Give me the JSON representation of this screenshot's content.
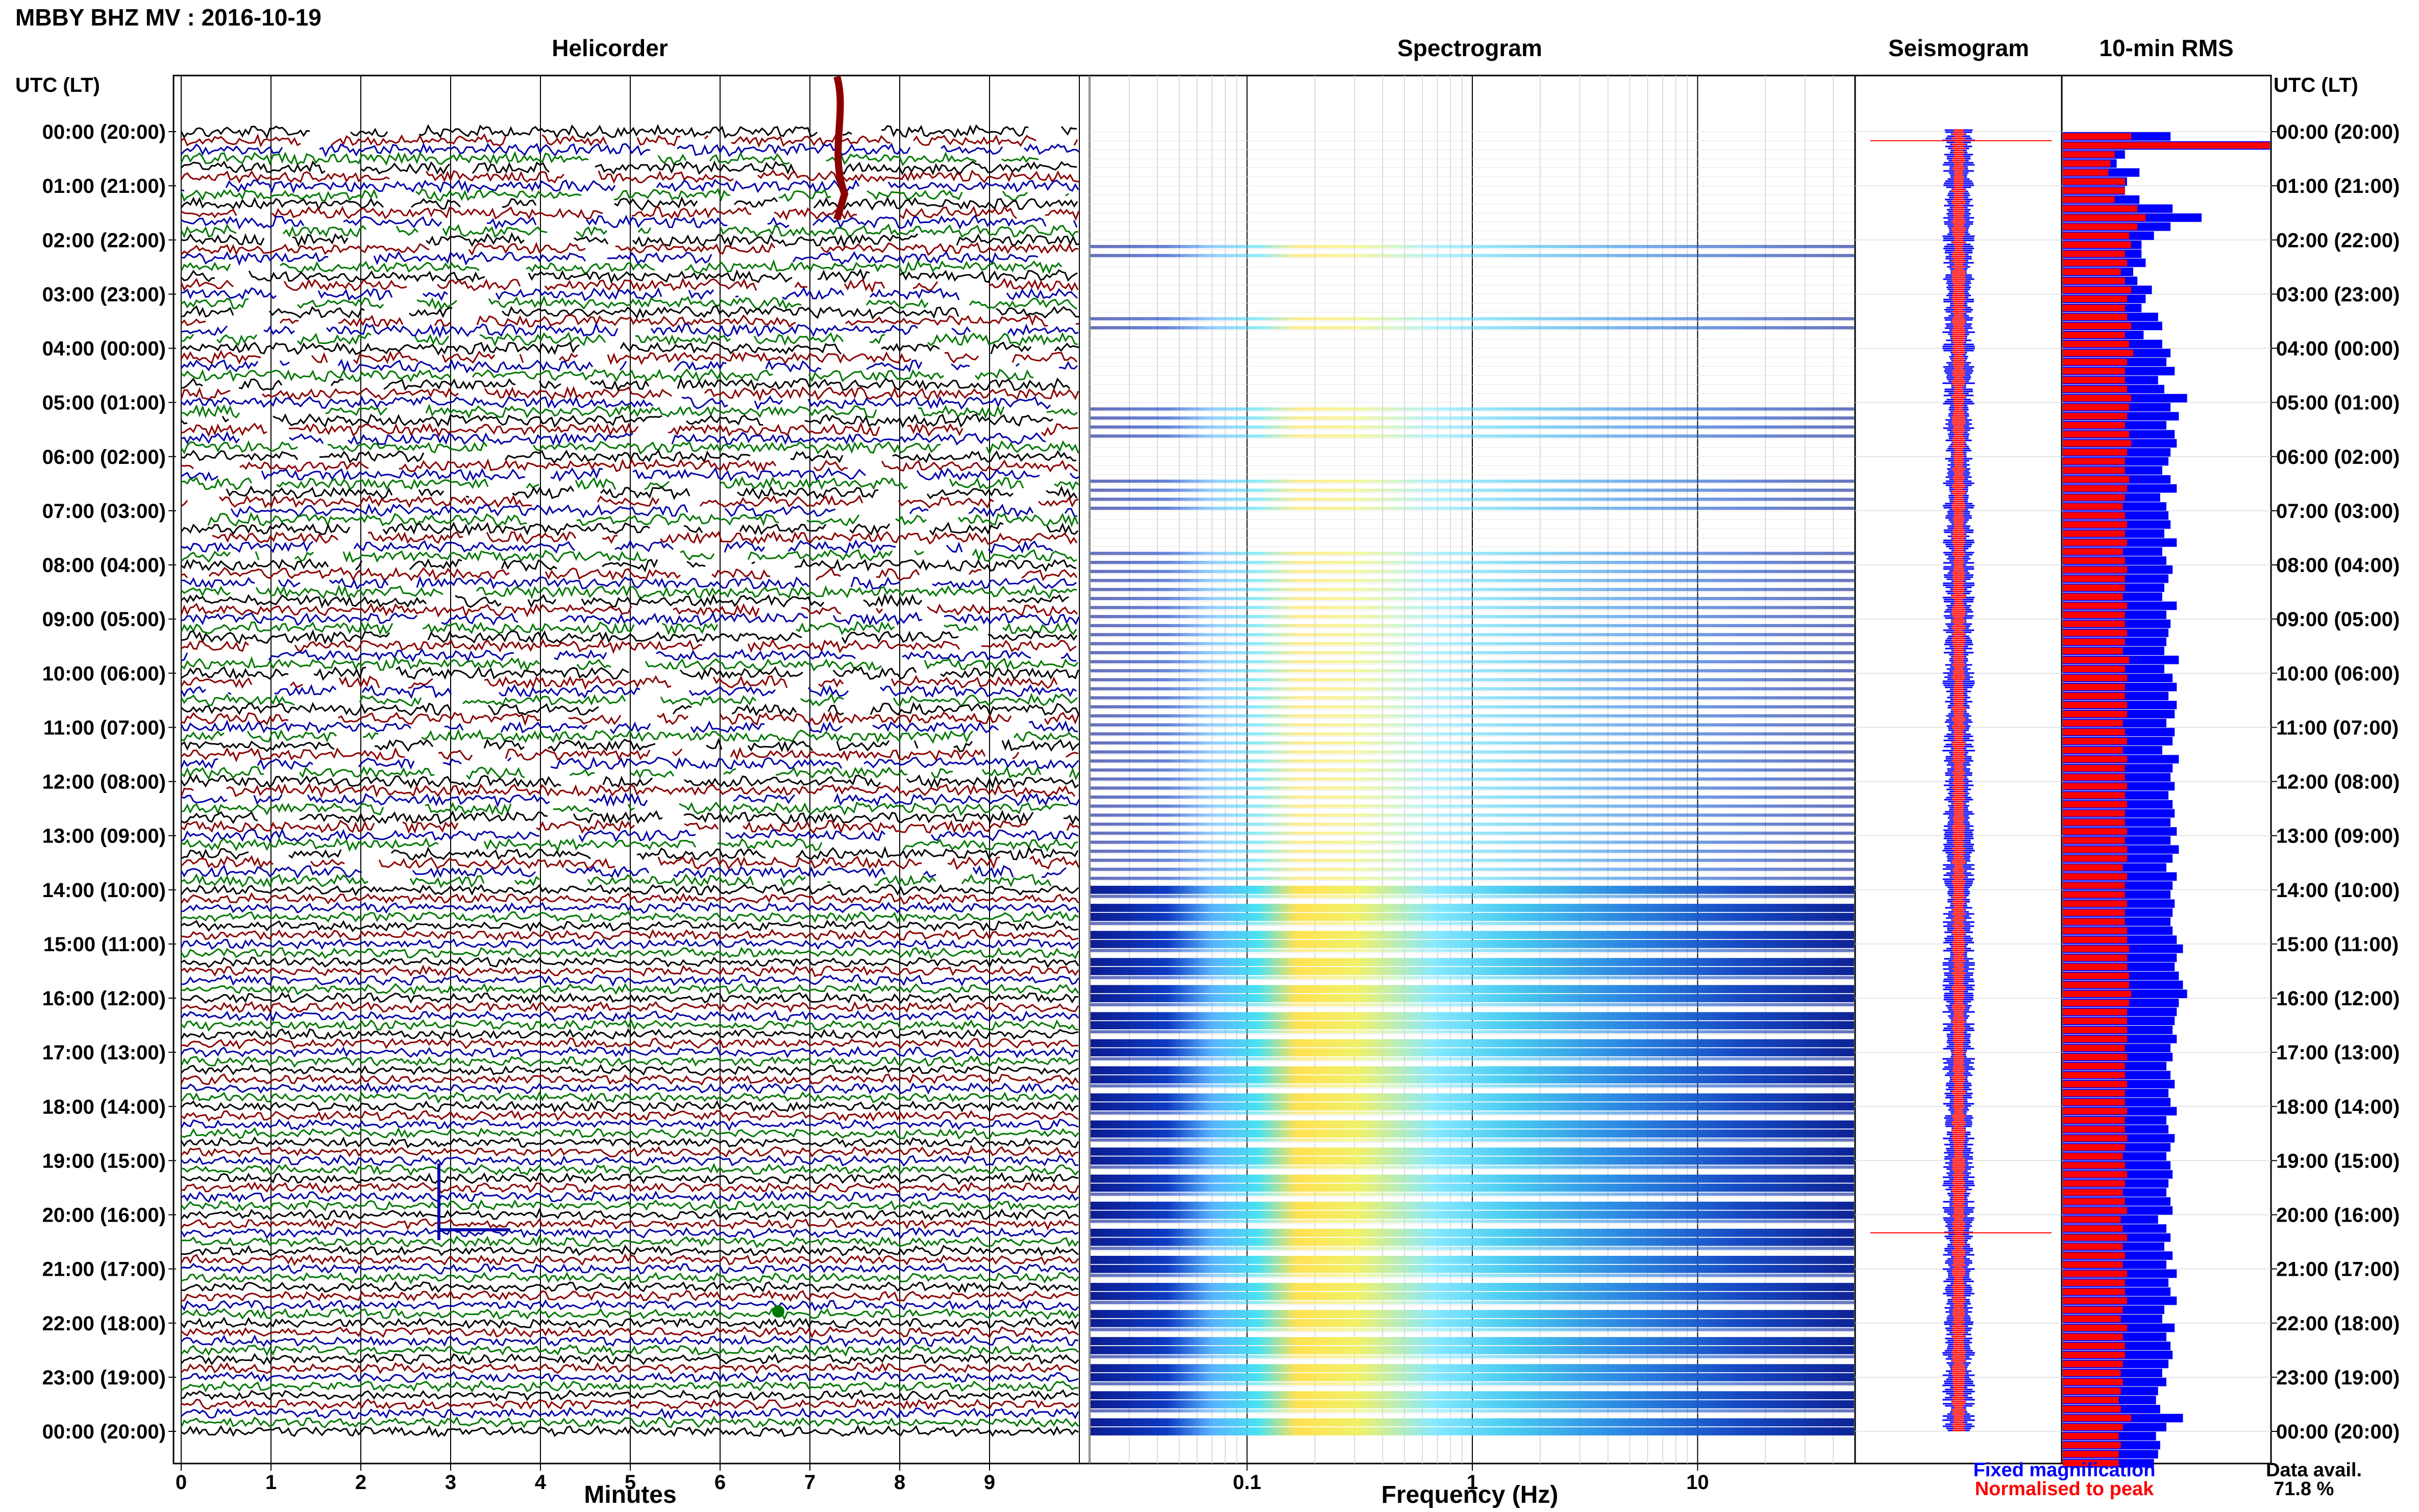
{
  "title": "MBBY BHZ MV : 2016-10-19",
  "panels": {
    "helicorder": "Helicorder",
    "spectrogram": "Spectrogram",
    "seismogram": "Seismogram",
    "rms": "10-min RMS"
  },
  "axis_header_left": "UTC (LT)",
  "axis_header_right": "UTC (LT)",
  "xlabel_minutes": "Minutes",
  "xlabel_frequency": "Frequency (Hz)",
  "legend": {
    "fixed": "Fixed magnification",
    "normalised": "Normalised to peak",
    "data_avail_label": "Data avail.",
    "data_avail_value": "71.8 %"
  },
  "colors": {
    "fixed": "#0000ff",
    "normalised": "#ff0000",
    "trace_cycle": [
      "#000000",
      "#8b0000",
      "#0000aa",
      "#007700"
    ]
  },
  "chart_data": {
    "type": "line",
    "time_ticks": [
      "00:00 (20:00)",
      "01:00 (21:00)",
      "02:00 (22:00)",
      "03:00 (23:00)",
      "04:00 (00:00)",
      "05:00 (01:00)",
      "06:00 (02:00)",
      "07:00 (03:00)",
      "08:00 (04:00)",
      "09:00 (05:00)",
      "10:00 (06:00)",
      "11:00 (07:00)",
      "12:00 (08:00)",
      "13:00 (09:00)",
      "14:00 (10:00)",
      "15:00 (11:00)",
      "16:00 (12:00)",
      "17:00 (13:00)",
      "18:00 (14:00)",
      "19:00 (15:00)",
      "20:00 (16:00)",
      "21:00 (17:00)",
      "22:00 (18:00)",
      "23:00 (19:00)",
      "00:00 (20:00)"
    ],
    "minute_ticks": [
      "0",
      "1",
      "2",
      "3",
      "4",
      "5",
      "6",
      "7",
      "8",
      "9"
    ],
    "frequency_ticks": [
      "0.1",
      "1",
      "10"
    ],
    "frequency_range_hz": [
      0.02,
      50
    ],
    "frequency_scale": "log",
    "helicorder_rows_per_hour": 6,
    "helicorder_minutes_per_row": 10,
    "rms_fixed": [
      0.52,
      0.34,
      0.3,
      0.26,
      0.37,
      0.31,
      0.3,
      0.37,
      0.53,
      0.67,
      0.52,
      0.44,
      0.38,
      0.38,
      0.4,
      0.34,
      0.36,
      0.43,
      0.4,
      0.38,
      0.46,
      0.48,
      0.39,
      0.48,
      0.52,
      0.5,
      0.54,
      0.46,
      0.49,
      0.6,
      0.52,
      0.56,
      0.5,
      0.54,
      0.55,
      0.52,
      0.51,
      0.48,
      0.52,
      0.55,
      0.47,
      0.5,
      0.51,
      0.52,
      0.49,
      0.55,
      0.48,
      0.5,
      0.53,
      0.51,
      0.49,
      0.48,
      0.55,
      0.5,
      0.52,
      0.51,
      0.5,
      0.49,
      0.56,
      0.49,
      0.53,
      0.55,
      0.51,
      0.55,
      0.54,
      0.5,
      0.54,
      0.53,
      0.48,
      0.56,
      0.53,
      0.52,
      0.54,
      0.51,
      0.53,
      0.54,
      0.52,
      0.55,
      0.52,
      0.56,
      0.53,
      0.5,
      0.55,
      0.53,
      0.52,
      0.54,
      0.53,
      0.52,
      0.53,
      0.55,
      0.58,
      0.55,
      0.54,
      0.56,
      0.58,
      0.6,
      0.56,
      0.55,
      0.54,
      0.53,
      0.55,
      0.52,
      0.53,
      0.5,
      0.52,
      0.54,
      0.51,
      0.52,
      0.55,
      0.5,
      0.51,
      0.54,
      0.52,
      0.5,
      0.52,
      0.53,
      0.51,
      0.5,
      0.52,
      0.53,
      0.46,
      0.5,
      0.52,
      0.49,
      0.53,
      0.5,
      0.55,
      0.51,
      0.52,
      0.55,
      0.49,
      0.48,
      0.54,
      0.5,
      0.52,
      0.53,
      0.51,
      0.48,
      0.5,
      0.46,
      0.45,
      0.47,
      0.58,
      0.5,
      0.45,
      0.47,
      0.46,
      0.44
    ],
    "rms_normalised": [
      0.33,
      0.3,
      0.25,
      0.23,
      0.22,
      0.3,
      0.3,
      0.25,
      0.36,
      0.4,
      0.36,
      0.32,
      0.33,
      0.3,
      0.31,
      0.28,
      0.3,
      0.33,
      0.31,
      0.3,
      0.31,
      0.33,
      0.3,
      0.32,
      0.34,
      0.31,
      0.3,
      0.3,
      0.31,
      0.33,
      0.32,
      0.31,
      0.3,
      0.32,
      0.33,
      0.31,
      0.3,
      0.3,
      0.32,
      0.31,
      0.3,
      0.29,
      0.3,
      0.31,
      0.3,
      0.31,
      0.29,
      0.3,
      0.31,
      0.3,
      0.3,
      0.29,
      0.31,
      0.3,
      0.3,
      0.31,
      0.3,
      0.29,
      0.32,
      0.3,
      0.31,
      0.3,
      0.3,
      0.31,
      0.31,
      0.29,
      0.3,
      0.31,
      0.29,
      0.31,
      0.3,
      0.3,
      0.31,
      0.3,
      0.31,
      0.3,
      0.3,
      0.31,
      0.3,
      0.31,
      0.31,
      0.29,
      0.31,
      0.3,
      0.3,
      0.31,
      0.3,
      0.3,
      0.31,
      0.31,
      0.32,
      0.31,
      0.31,
      0.32,
      0.32,
      0.33,
      0.32,
      0.31,
      0.31,
      0.31,
      0.31,
      0.3,
      0.31,
      0.3,
      0.3,
      0.31,
      0.3,
      0.3,
      0.31,
      0.3,
      0.3,
      0.31,
      0.3,
      0.29,
      0.3,
      0.31,
      0.3,
      0.29,
      0.3,
      0.31,
      0.28,
      0.29,
      0.31,
      0.29,
      0.3,
      0.29,
      0.31,
      0.3,
      0.3,
      0.31,
      0.29,
      0.28,
      0.31,
      0.29,
      0.3,
      0.3,
      0.29,
      0.28,
      0.29,
      0.28,
      0.27,
      0.28,
      0.33,
      0.29,
      0.27,
      0.28,
      0.27,
      0.27
    ],
    "rms_peak_row": {
      "row": 1,
      "fixed": 1.0
    },
    "seismogram_events": [
      1,
      122
    ],
    "spectrogram_active_rows": [
      13,
      14,
      21,
      22,
      31,
      32,
      33,
      34,
      39,
      40,
      41,
      42,
      47,
      48,
      49,
      50,
      51,
      52,
      53,
      54,
      55,
      56,
      57,
      58,
      59,
      60,
      61,
      62,
      63,
      64,
      65,
      66,
      67,
      68,
      69,
      70,
      71,
      72,
      73,
      74,
      75,
      76,
      77,
      78,
      79,
      80,
      81,
      82,
      83,
      84,
      85,
      86,
      87,
      88,
      89,
      90,
      91,
      92,
      93,
      94,
      95,
      96,
      97,
      98,
      99,
      100,
      101,
      102,
      103,
      104,
      105,
      106,
      107,
      108,
      109,
      110,
      111,
      112,
      113,
      114,
      115,
      116,
      117,
      118,
      119,
      120,
      121,
      122,
      123,
      124,
      125,
      126,
      127,
      128,
      129,
      130,
      131,
      132,
      133,
      134,
      135,
      136,
      137,
      138,
      139,
      140,
      141,
      142,
      143,
      144
    ]
  }
}
